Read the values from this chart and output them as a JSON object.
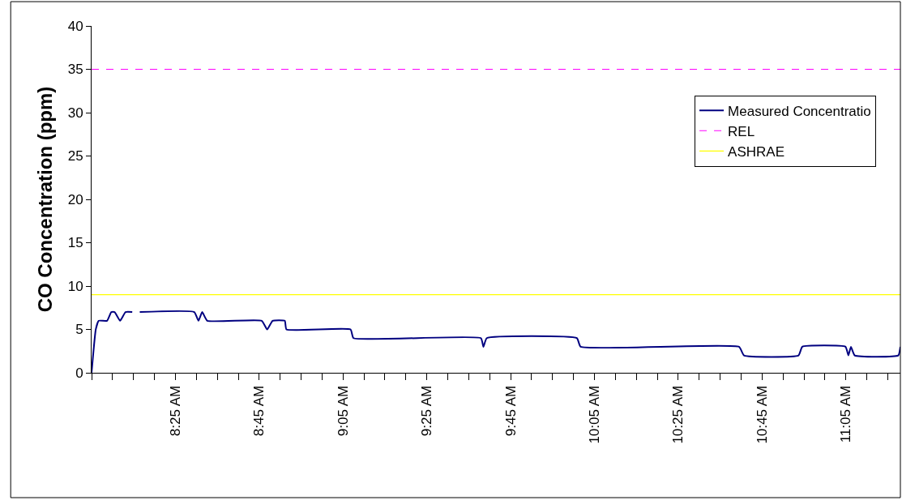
{
  "chart_data": {
    "type": "line",
    "ylabel": "CO Concentration (ppm)",
    "xlim": [
      8.0833,
      11.3
    ],
    "ylim": [
      0,
      40
    ],
    "yticks": [
      0,
      5,
      10,
      15,
      20,
      25,
      30,
      35,
      40
    ],
    "xticks": [
      {
        "value": 8.0833,
        "label": null
      },
      {
        "value": 8.1667,
        "label": null
      },
      {
        "value": 8.25,
        "label": null
      },
      {
        "value": 8.3333,
        "label": null
      },
      {
        "value": 8.4167,
        "label": "8:25 AM"
      },
      {
        "value": 8.5,
        "label": null
      },
      {
        "value": 8.5833,
        "label": null
      },
      {
        "value": 8.6667,
        "label": null
      },
      {
        "value": 8.75,
        "label": "8:45 AM"
      },
      {
        "value": 8.8333,
        "label": null
      },
      {
        "value": 8.9167,
        "label": null
      },
      {
        "value": 9.0,
        "label": null
      },
      {
        "value": 9.0833,
        "label": "9:05 AM"
      },
      {
        "value": 9.1667,
        "label": null
      },
      {
        "value": 9.25,
        "label": null
      },
      {
        "value": 9.3333,
        "label": null
      },
      {
        "value": 9.4167,
        "label": "9:25 AM"
      },
      {
        "value": 9.5,
        "label": null
      },
      {
        "value": 9.5833,
        "label": null
      },
      {
        "value": 9.6667,
        "label": null
      },
      {
        "value": 9.75,
        "label": "9:45 AM"
      },
      {
        "value": 9.8333,
        "label": null
      },
      {
        "value": 9.9167,
        "label": null
      },
      {
        "value": 10.0,
        "label": null
      },
      {
        "value": 10.0833,
        "label": "10:05 AM"
      },
      {
        "value": 10.1667,
        "label": null
      },
      {
        "value": 10.25,
        "label": null
      },
      {
        "value": 10.3333,
        "label": null
      },
      {
        "value": 10.4167,
        "label": "10:25 AM"
      },
      {
        "value": 10.5,
        "label": null
      },
      {
        "value": 10.5833,
        "label": null
      },
      {
        "value": 10.6667,
        "label": null
      },
      {
        "value": 10.75,
        "label": "10:45 AM"
      },
      {
        "value": 10.8333,
        "label": null
      },
      {
        "value": 10.9167,
        "label": null
      },
      {
        "value": 11.0,
        "label": null
      },
      {
        "value": 11.0833,
        "label": "11:05 AM"
      },
      {
        "value": 11.1667,
        "label": null
      },
      {
        "value": 11.25,
        "label": null
      }
    ],
    "legend": "top right",
    "marker": "none",
    "series": [
      {
        "name": "Measured Concentratio",
        "color": "#000080",
        "line_style": "solid",
        "x": [
          8.0833,
          8.1,
          8.1117,
          8.145,
          8.1617,
          8.175,
          8.1967,
          8.2183,
          8.245,
          8.2583,
          8.275,
          8.4917,
          8.5083,
          8.5233,
          8.5433,
          8.76,
          8.7817,
          8.8033,
          8.8517,
          8.8583,
          9.1133,
          9.125,
          9.6317,
          9.6417,
          9.655,
          10.0133,
          10.0283,
          10.6583,
          10.6783,
          10.895,
          10.91,
          11.0817,
          11.0933,
          11.1033,
          11.1183,
          11.2917,
          11.3
        ],
        "values": [
          0,
          5,
          6,
          6,
          7,
          7,
          6,
          7,
          7,
          null,
          7,
          7,
          6,
          7,
          6,
          6,
          5,
          6,
          6,
          5,
          5,
          4,
          4,
          3,
          4,
          4,
          3,
          3,
          2,
          2,
          3,
          3,
          2,
          3,
          2,
          2,
          3
        ]
      },
      {
        "name": "REL",
        "color": "#ff00ff",
        "line_style": "dashed",
        "x": [
          8.0833,
          11.3
        ],
        "values": [
          35,
          35
        ]
      },
      {
        "name": "ASHRAE",
        "color": "#ffff00",
        "line_style": "solid",
        "x": [
          8.0833,
          11.3
        ],
        "values": [
          9,
          9
        ]
      }
    ]
  }
}
